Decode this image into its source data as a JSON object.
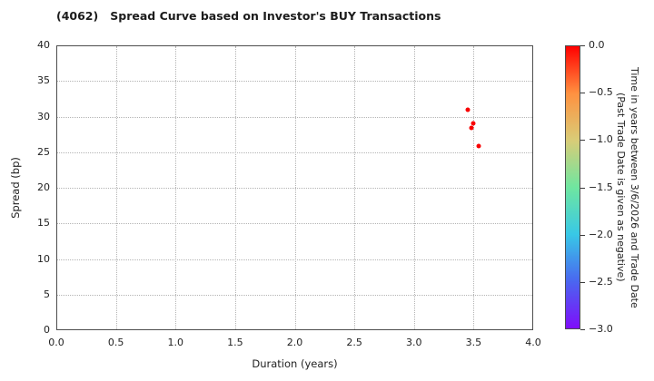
{
  "chart_data": {
    "type": "scatter",
    "title": "(4062)   Spread Curve based on Investor's BUY Transactions",
    "xlabel": "Duration (years)",
    "ylabel": "Spread (bp)",
    "xlim": [
      0.0,
      4.0
    ],
    "ylim": [
      0,
      40
    ],
    "grid": true,
    "grid_style": "dotted",
    "xticks": [
      {
        "label": "0.0",
        "value": 0.0
      },
      {
        "label": "0.5",
        "value": 0.5
      },
      {
        "label": "1.0",
        "value": 1.0
      },
      {
        "label": "1.5",
        "value": 1.5
      },
      {
        "label": "2.0",
        "value": 2.0
      },
      {
        "label": "2.5",
        "value": 2.5
      },
      {
        "label": "3.0",
        "value": 3.0
      },
      {
        "label": "3.5",
        "value": 3.5
      },
      {
        "label": "4.0",
        "value": 4.0
      }
    ],
    "yticks": [
      {
        "label": "0",
        "value": 0
      },
      {
        "label": "5",
        "value": 5
      },
      {
        "label": "10",
        "value": 10
      },
      {
        "label": "15",
        "value": 15
      },
      {
        "label": "20",
        "value": 20
      },
      {
        "label": "25",
        "value": 25
      },
      {
        "label": "30",
        "value": 30
      },
      {
        "label": "35",
        "value": 35
      },
      {
        "label": "40",
        "value": 40
      }
    ],
    "points": [
      {
        "x": 3.45,
        "y": 31.0,
        "color_value": 0.0
      },
      {
        "x": 3.48,
        "y": 28.4,
        "color_value": 0.0
      },
      {
        "x": 3.5,
        "y": 29.0,
        "color_value": 0.0
      },
      {
        "x": 3.54,
        "y": 25.8,
        "color_value": 0.0
      }
    ],
    "point_color": "#f80000",
    "colorbar": {
      "label_line1": "Time in years between 3/6/2026 and Trade Date",
      "label_line2": "(Past Trade Date is given as negative)",
      "range": [
        0.0,
        -3.0
      ],
      "ticks": [
        {
          "label": "0.0",
          "value": 0.0
        },
        {
          "label": "−0.5",
          "value": -0.5
        },
        {
          "label": "−1.0",
          "value": -1.0
        },
        {
          "label": "−1.5",
          "value": -1.5
        },
        {
          "label": "−2.0",
          "value": -2.0
        },
        {
          "label": "−2.5",
          "value": -2.5
        },
        {
          "label": "−3.0",
          "value": -3.0
        }
      ],
      "colormap": "rainbow",
      "gradient_stops": [
        "#ff0000",
        "#ff9140",
        "#d9cc77",
        "#6fe6a0",
        "#38c8e6",
        "#4a66f0",
        "#7f0dfa"
      ]
    }
  }
}
